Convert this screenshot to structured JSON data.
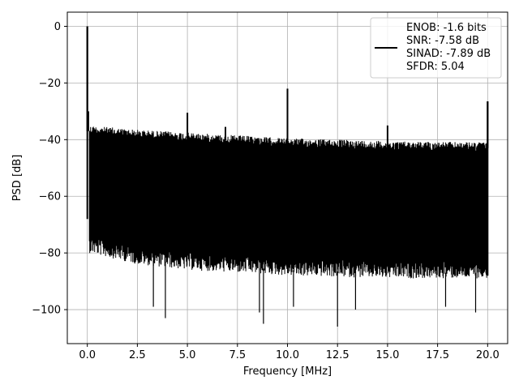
{
  "chart_data": {
    "type": "line",
    "title": "",
    "xlabel": "Frequency [MHz]",
    "ylabel": "PSD [dB]",
    "xlim": [
      -1.0,
      21.0
    ],
    "ylim": [
      -112.0,
      5.0
    ],
    "x_ticks": [
      0.0,
      2.5,
      5.0,
      7.5,
      10.0,
      12.5,
      15.0,
      17.5,
      20.0
    ],
    "x_tick_labels": [
      "0.0",
      "2.5",
      "5.0",
      "7.5",
      "10.0",
      "12.5",
      "15.0",
      "17.5",
      "20.0"
    ],
    "y_ticks": [
      0,
      -20,
      -40,
      -60,
      -80,
      -100
    ],
    "y_tick_labels": [
      "0",
      "−20",
      "−40",
      "−60",
      "−80",
      "−100"
    ],
    "grid": true,
    "legend_position": "top-right",
    "legend": [
      "ENOB: -1.6 bits",
      "SNR: -7.58 dB",
      "SINAD: -7.89 dB",
      "SFDR: 5.04"
    ],
    "series": [
      {
        "color": "#000000",
        "noise_floor_upper_db": [
          [
            0.1,
            -37
          ],
          [
            2.5,
            -38.5
          ],
          [
            5.0,
            -39.5
          ],
          [
            10.0,
            -41.5
          ],
          [
            15.0,
            -42.5
          ],
          [
            20.0,
            -43
          ]
        ],
        "noise_floor_lower_db": [
          [
            0.1,
            -78
          ],
          [
            2.5,
            -82
          ],
          [
            5.0,
            -84
          ],
          [
            10.0,
            -86
          ],
          [
            15.0,
            -87
          ],
          [
            20.0,
            -87
          ]
        ],
        "peaks": [
          {
            "x": 0.0,
            "y": 0.0
          },
          {
            "x": 0.05,
            "y": -30
          },
          {
            "x": 5.0,
            "y": -30.5
          },
          {
            "x": 6.9,
            "y": -35.5
          },
          {
            "x": 10.0,
            "y": -22
          },
          {
            "x": 15.0,
            "y": -35
          },
          {
            "x": 20.0,
            "y": -26.5
          }
        ],
        "dips": [
          {
            "x": 3.3,
            "y": -99
          },
          {
            "x": 3.9,
            "y": -103
          },
          {
            "x": 8.6,
            "y": -101
          },
          {
            "x": 8.8,
            "y": -105
          },
          {
            "x": 10.3,
            "y": -99
          },
          {
            "x": 12.5,
            "y": -106
          },
          {
            "x": 13.4,
            "y": -100
          },
          {
            "x": 17.9,
            "y": -99
          },
          {
            "x": 19.4,
            "y": -101
          }
        ]
      }
    ]
  }
}
